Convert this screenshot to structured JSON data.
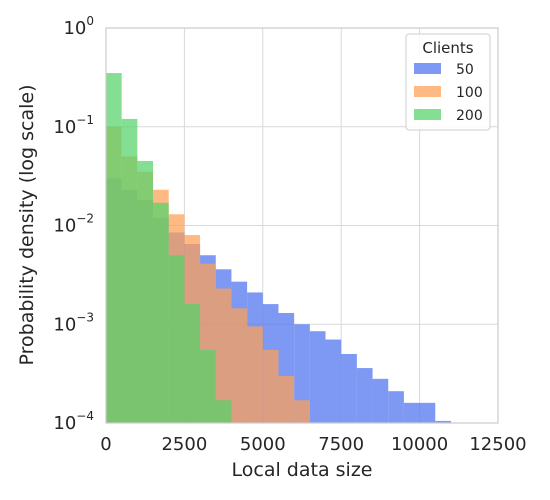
{
  "chart_data": {
    "type": "bar",
    "subtype": "overlapping histogram",
    "xlabel": "Local data size",
    "ylabel": "Probability density (log scale)",
    "xlim": [
      0,
      12500
    ],
    "ylim": [
      0.0001,
      1
    ],
    "yscale": "log",
    "grid": true,
    "x_ticks": [
      "0",
      "2500",
      "5000",
      "7500",
      "10000",
      "12500"
    ],
    "y_ticks": [
      {
        "base": "10",
        "exp": "−4"
      },
      {
        "base": "10",
        "exp": "−3"
      },
      {
        "base": "10",
        "exp": "−2"
      },
      {
        "base": "10",
        "exp": "−1"
      },
      {
        "base": "10",
        "exp": "0"
      }
    ],
    "legend": {
      "title": "Clients",
      "position": "top-right"
    },
    "series": [
      {
        "name": "50",
        "color": "#4C72F0",
        "bin_width": 500,
        "bin_starts": [
          0,
          500,
          1000,
          1500,
          2000,
          2500,
          3000,
          3500,
          4000,
          4500,
          5000,
          5500,
          6000,
          6500,
          7000,
          7500,
          8000,
          8500,
          9000,
          9500,
          10000,
          10500
        ],
        "values": [
          0.03,
          0.023,
          0.018,
          0.012,
          0.0085,
          0.0065,
          0.005,
          0.0036,
          0.0027,
          0.0021,
          0.0016,
          0.0013,
          0.001,
          0.00085,
          0.0007,
          0.0005,
          0.00036,
          0.00028,
          0.00021,
          0.00016,
          0.00016,
          0.000105
        ]
      },
      {
        "name": "100",
        "color": "#FF9F55",
        "bin_width": 500,
        "bin_starts": [
          0,
          500,
          1000,
          1500,
          2000,
          2500,
          3000,
          3500,
          4000,
          4500,
          5000,
          5500,
          6000
        ],
        "values": [
          0.1,
          0.05,
          0.035,
          0.023,
          0.013,
          0.008,
          0.0041,
          0.0023,
          0.00145,
          0.00095,
          0.00055,
          0.0003,
          0.00017
        ]
      },
      {
        "name": "200",
        "color": "#55D36A",
        "bin_width": 500,
        "bin_starts": [
          0,
          500,
          1000,
          1500,
          2000,
          2500,
          3000,
          3500
        ],
        "values": [
          0.35,
          0.12,
          0.045,
          0.017,
          0.005,
          0.0016,
          0.00055,
          0.00017
        ]
      }
    ]
  }
}
